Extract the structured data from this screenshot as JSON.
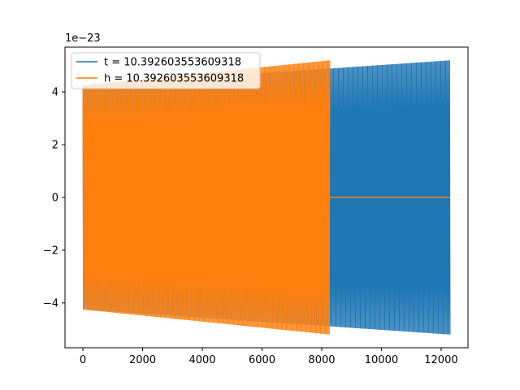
{
  "chart_data": {
    "type": "line",
    "title": "",
    "xlabel": "",
    "ylabel": "",
    "y_offset_text": "1e−23",
    "xlim": [
      -600,
      12900
    ],
    "ylim": [
      -5.7,
      5.7
    ],
    "x_ticks": [
      0,
      2000,
      4000,
      6000,
      8000,
      10000,
      12000
    ],
    "x_tick_labels": [
      "0",
      "2000",
      "4000",
      "6000",
      "8000",
      "10000",
      "12000"
    ],
    "y_ticks": [
      -4,
      -2,
      0,
      2,
      4
    ],
    "y_tick_labels": [
      "−4",
      "−2",
      "0",
      "2",
      "4"
    ],
    "grid": false,
    "legend_position": "top-left",
    "series": [
      {
        "name": "t = 10.392603553609318",
        "color": "#1f77b4",
        "x_end": 12300,
        "amplitude_start": 4.25,
        "amplitude_end": 5.2,
        "style": "dense-oscillation"
      },
      {
        "name": "h = 10.392603553609318",
        "color": "#ff7f0e",
        "x_end": 8270,
        "amplitude_start": 4.25,
        "amplitude_end": 5.2,
        "flat_after_end": true,
        "flat_x_end": 12300,
        "flat_value": 0,
        "style": "dense-oscillation"
      }
    ]
  }
}
